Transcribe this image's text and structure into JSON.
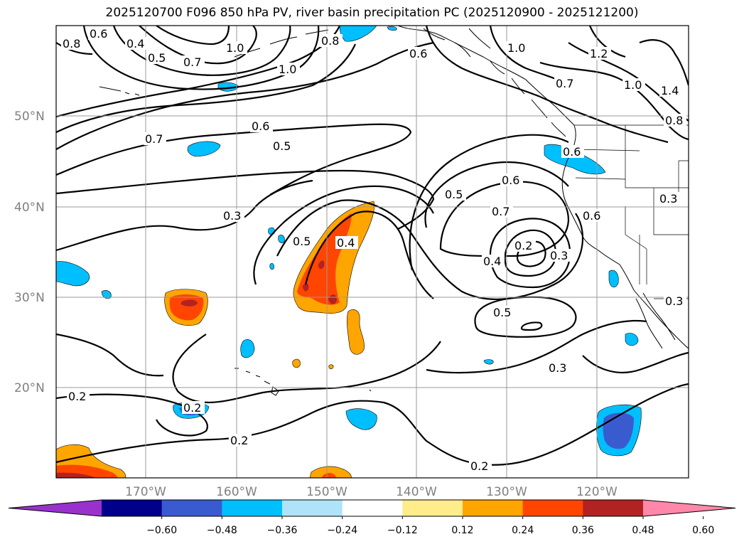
{
  "title": "2025120700 F096 850 hPa PV, river basin precipitation PC (2025120900 - 2025121200)",
  "lat_labels": [
    "50°N",
    "40°N",
    "30°N",
    "20°N"
  ],
  "lon_labels": [
    "170°W",
    "160°W",
    "150°W",
    "140°W",
    "130°W",
    "120°W"
  ],
  "colorbar": {
    "colors": [
      "#9932cc",
      "#00008b",
      "#3a5bcf",
      "#00bfff",
      "#aee3fa",
      "#ffffff",
      "#ffec8b",
      "#ffa500",
      "#ff4500",
      "#b22222",
      "#ff88aa"
    ],
    "ticks": [
      "−0.60",
      "−0.48",
      "−0.36",
      "−0.24",
      "−0.12",
      "0.12",
      "0.24",
      "0.36",
      "0.48",
      "0.60"
    ],
    "extend": "both"
  },
  "contour_labels": [
    "0.6",
    "0.8",
    "0.4",
    "0.5",
    "0.7",
    "1.0",
    "1.0",
    "0.8",
    "0.6",
    "1.0",
    "1.2",
    "0.7",
    "1.0",
    "1.4",
    "0.8",
    "0.7",
    "0.6",
    "0.5",
    "0.6",
    "0.5",
    "0.6",
    "0.7",
    "0.3",
    "0.5",
    "0.4",
    "0.2",
    "0.4",
    "0.3",
    "0.6",
    "0.3",
    "0.5",
    "0.3",
    "0.3",
    "0.2",
    "0.2",
    "0.2",
    "0.2",
    "0.2"
  ]
}
